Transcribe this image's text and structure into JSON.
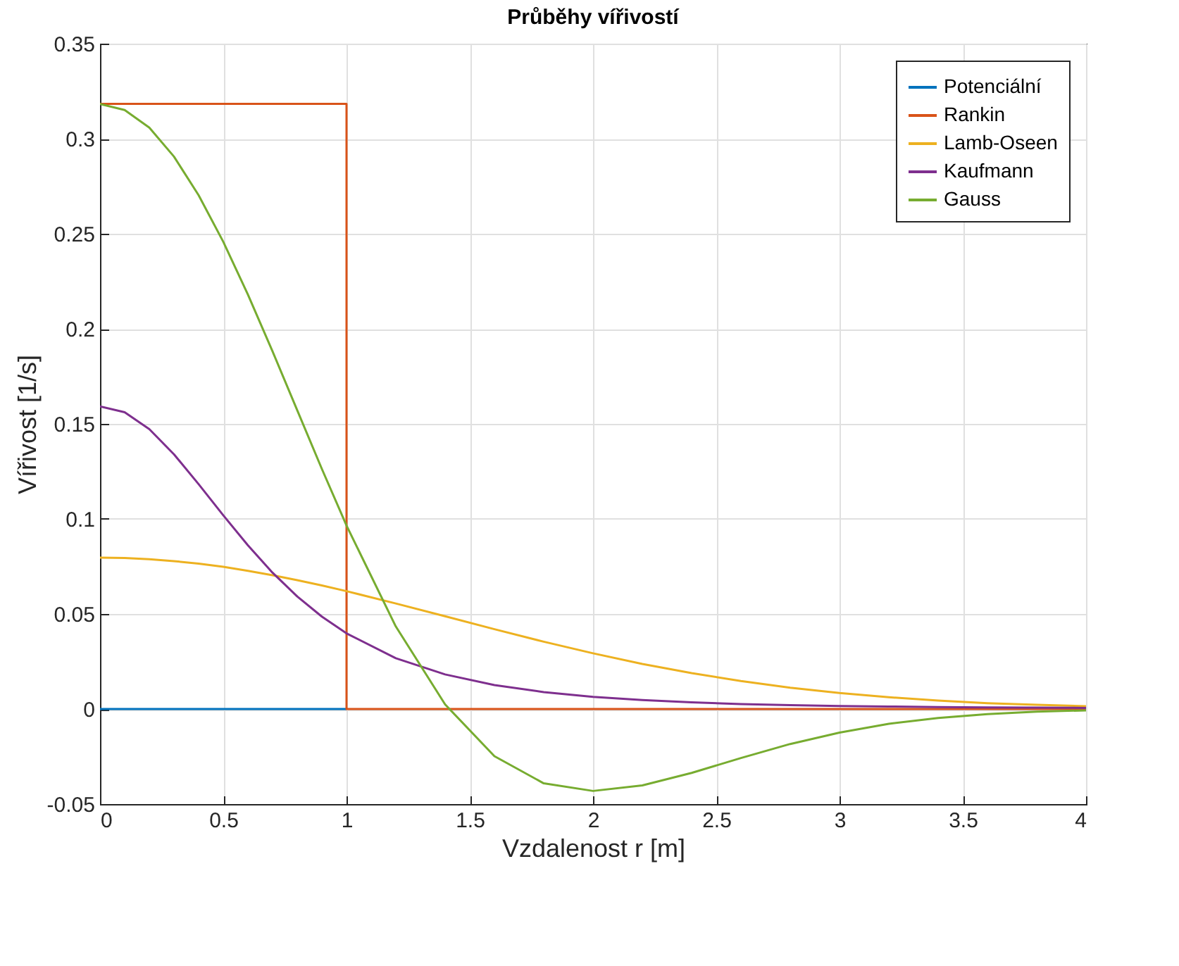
{
  "chart_data": {
    "type": "line",
    "title": "Průběhy vířivostí",
    "xlabel": "Vzdalenost r [m]",
    "ylabel": "Vířivost [1/s]",
    "x": [
      0,
      0.1,
      0.2,
      0.3,
      0.4,
      0.5,
      0.6,
      0.7,
      0.8,
      0.9,
      1.0,
      1.2,
      1.4,
      1.6,
      1.8,
      2.0,
      2.2,
      2.4,
      2.6,
      2.8,
      3.0,
      3.2,
      3.4,
      3.6,
      3.8,
      4.0
    ],
    "series": [
      {
        "name": "Potenciální",
        "color": "#0072bd",
        "x": [
          0,
          1
        ],
        "values": [
          0,
          0
        ]
      },
      {
        "name": "Rankin",
        "color": "#d95319",
        "x": [
          0,
          1,
          1,
          4
        ],
        "values": [
          0.3183,
          0.3183,
          0,
          0
        ]
      },
      {
        "name": "Lamb-Oseen",
        "color": "#edb120",
        "values": [
          0.0796,
          0.0794,
          0.0788,
          0.0778,
          0.0765,
          0.0748,
          0.0727,
          0.0704,
          0.0678,
          0.065,
          0.062,
          0.0555,
          0.0488,
          0.042,
          0.0354,
          0.0293,
          0.0237,
          0.0189,
          0.0147,
          0.0112,
          0.0084,
          0.0062,
          0.0044,
          0.0031,
          0.0022,
          0.0015
        ]
      },
      {
        "name": "Kaufmann",
        "color": "#7e2f8e",
        "values": [
          0.1592,
          0.1561,
          0.1472,
          0.134,
          0.1183,
          0.1019,
          0.0861,
          0.0717,
          0.0592,
          0.0486,
          0.0398,
          0.0267,
          0.0182,
          0.0126,
          0.0089,
          0.0064,
          0.0047,
          0.0035,
          0.0026,
          0.002,
          0.0016,
          0.0013,
          0.001,
          0.0008,
          0.0007,
          0.0006
        ]
      },
      {
        "name": "Gauss",
        "color": "#77ac30",
        "values": [
          0.3183,
          0.3151,
          0.3058,
          0.2906,
          0.2703,
          0.2458,
          0.218,
          0.1881,
          0.1572,
          0.1263,
          0.0965,
          0.0434,
          0.0024,
          -0.0248,
          -0.0391,
          -0.0431,
          -0.0402,
          -0.0336,
          -0.0258,
          -0.0184,
          -0.0124,
          -0.0078,
          -0.0047,
          -0.0027,
          -0.0014,
          -0.0007
        ]
      }
    ],
    "xlim": [
      0,
      4
    ],
    "xticks": [
      0,
      0.5,
      1,
      1.5,
      2,
      2.5,
      3,
      3.5,
      4
    ],
    "ylim": [
      -0.05,
      0.35
    ],
    "yticks": [
      -0.05,
      0,
      0.05,
      0.1,
      0.15,
      0.2,
      0.25,
      0.3,
      0.35
    ],
    "grid": true,
    "legend": "top right",
    "line_style": "solid",
    "marker": "none"
  }
}
